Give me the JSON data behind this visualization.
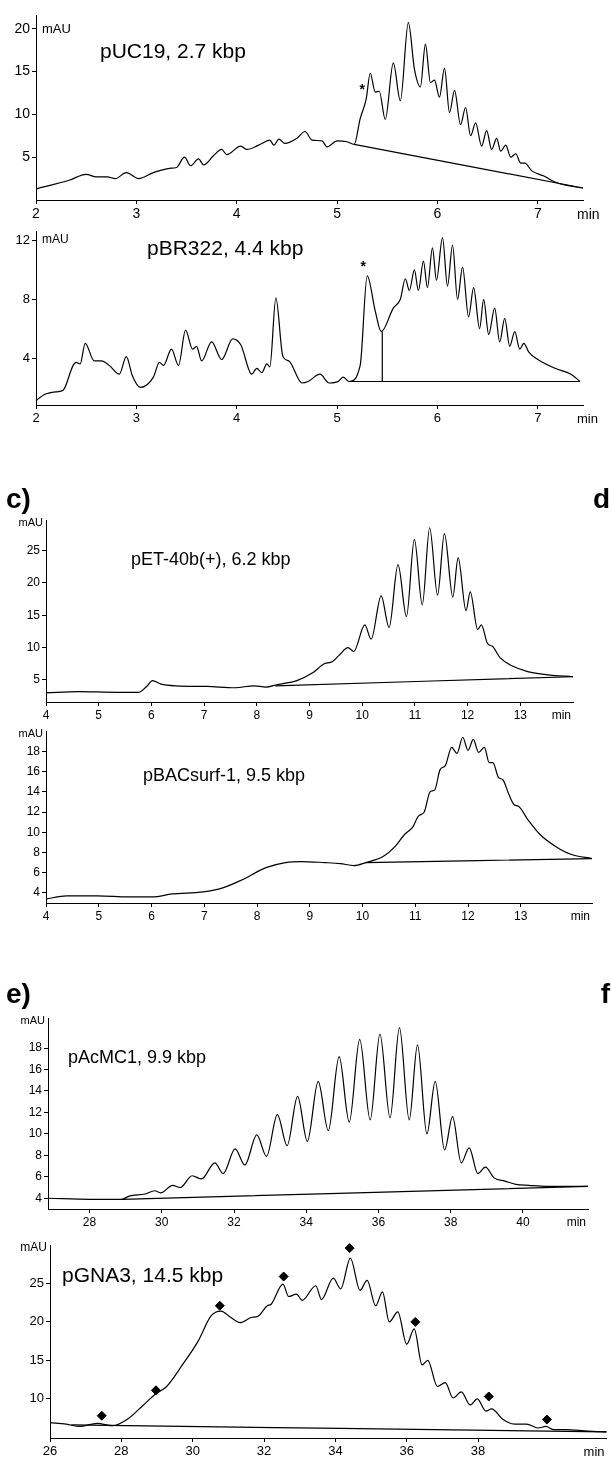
{
  "chart_data": [
    {
      "type": "line",
      "title": "pUC19, 2.7 kbp",
      "xlabel": "min",
      "ylabel": "mAU",
      "xlim": [
        2,
        7.45
      ],
      "ylim": [
        0,
        21.6
      ],
      "xticks": [
        2,
        3,
        4,
        5,
        6,
        7
      ],
      "yticks": [
        5,
        10,
        15,
        20
      ],
      "annotations": [
        {
          "text": "*",
          "x": 5.29,
          "y": 11.8
        }
      ],
      "series": [
        {
          "color": "#000000",
          "x": [
            2.0,
            2.33,
            2.5,
            2.6,
            2.71,
            2.79,
            2.9,
            3.02,
            3.17,
            3.33,
            3.4,
            3.48,
            3.54,
            3.62,
            3.67,
            3.77,
            3.85,
            3.9,
            4.04,
            4.1,
            4.25,
            4.33,
            4.37,
            4.42,
            4.48,
            4.6,
            4.68,
            4.75,
            4.85,
            4.9,
            5.0,
            5.1,
            5.17,
            5.23,
            5.29,
            5.33,
            5.38,
            5.42,
            5.48,
            5.56,
            5.63,
            5.71,
            5.77,
            5.83,
            5.88,
            5.93,
            5.97,
            6.02,
            6.07,
            6.12,
            6.17,
            6.23,
            6.28,
            6.33,
            6.38,
            6.44,
            6.49,
            6.54,
            6.59,
            6.63,
            6.68,
            6.73,
            6.78,
            6.83,
            6.87,
            6.94,
            7.06,
            7.17,
            7.29,
            7.45
          ],
          "values": [
            1.3,
            2.3,
            3.0,
            2.7,
            2.7,
            2.5,
            3.2,
            2.5,
            3.2,
            3.7,
            3.8,
            5.0,
            4.0,
            4.8,
            4.1,
            5.2,
            5.9,
            5.3,
            6.3,
            5.9,
            6.6,
            7.0,
            6.4,
            7.1,
            6.6,
            7.2,
            8.0,
            7.0,
            6.9,
            6.2,
            6.9,
            6.8,
            6.5,
            9.5,
            11.8,
            14.8,
            12.6,
            12.7,
            9.4,
            16.0,
            11.6,
            20.7,
            15.3,
            13.2,
            18.2,
            13.7,
            14.0,
            12.0,
            15.4,
            10.2,
            12.8,
            8.8,
            10.8,
            7.5,
            9.0,
            6.3,
            8.1,
            5.9,
            7.2,
            5.7,
            6.4,
            5.0,
            5.4,
            4.3,
            4.3,
            3.4,
            2.8,
            2.1,
            1.7,
            1.4
          ]
        },
        {
          "color": "#000000",
          "x": [
            5.17,
            7.45
          ],
          "values": [
            6.5,
            1.4
          ]
        }
      ]
    },
    {
      "type": "line",
      "title": "pBR322, 4.4 kbp",
      "xlabel": "min",
      "ylabel": "mAU",
      "xlim": [
        2,
        7.45
      ],
      "ylim": [
        0.8,
        12.6
      ],
      "xticks": [
        2,
        3,
        4,
        5,
        6,
        7
      ],
      "yticks": [
        4,
        8,
        12
      ],
      "annotations": [
        {
          "text": "*",
          "x": 5.3,
          "y": 9.6
        }
      ],
      "series": [
        {
          "color": "#000000",
          "x": [
            2.0,
            2.08,
            2.21,
            2.27,
            2.37,
            2.4,
            2.44,
            2.49,
            2.58,
            2.65,
            2.73,
            2.83,
            2.9,
            2.96,
            3.04,
            3.17,
            3.23,
            3.27,
            3.35,
            3.42,
            3.49,
            3.56,
            3.6,
            3.65,
            3.75,
            3.85,
            3.96,
            4.04,
            4.15,
            4.2,
            4.25,
            4.3,
            4.33,
            4.39,
            4.46,
            4.52,
            4.65,
            4.71,
            4.83,
            4.92,
            5.01,
            5.06,
            5.12,
            5.23,
            5.3,
            5.38,
            5.44,
            5.56,
            5.63,
            5.68,
            5.72,
            5.77,
            5.81,
            5.86,
            5.9,
            5.95,
            5.99,
            6.05,
            6.1,
            6.15,
            6.2,
            6.25,
            6.31,
            6.36,
            6.42,
            6.46,
            6.51,
            6.57,
            6.62,
            6.67,
            6.72,
            6.77,
            6.82,
            6.86,
            6.91,
            7.0,
            7.17,
            7.33,
            7.42
          ],
          "values": [
            1.1,
            1.5,
            1.7,
            1.8,
            3.5,
            3.7,
            3.6,
            5.0,
            3.8,
            3.8,
            3.5,
            2.9,
            4.1,
            2.8,
            2.0,
            2.7,
            3.7,
            3.5,
            4.6,
            3.5,
            5.9,
            4.6,
            4.8,
            3.8,
            5.1,
            3.9,
            5.3,
            4.9,
            2.9,
            3.3,
            3.0,
            3.6,
            3.4,
            8.1,
            4.1,
            3.8,
            2.3,
            2.4,
            2.9,
            2.3,
            2.4,
            2.7,
            2.4,
            3.5,
            9.6,
            7.2,
            5.8,
            7.4,
            8.0,
            9.4,
            8.6,
            10.0,
            8.6,
            10.6,
            8.8,
            11.5,
            9.3,
            12.2,
            8.9,
            11.7,
            8.0,
            10.2,
            6.8,
            8.8,
            6.0,
            8.0,
            5.6,
            7.4,
            5.1,
            6.7,
            4.8,
            5.8,
            4.6,
            5.0,
            4.4,
            3.9,
            3.3,
            2.9,
            2.4
          ]
        },
        {
          "color": "#000000",
          "x": [
            5.12,
            7.42
          ],
          "values": [
            2.4,
            2.4
          ]
        },
        {
          "color": "#000000",
          "x": [
            5.45,
            5.45
          ],
          "values": [
            2.4,
            5.8
          ]
        }
      ]
    },
    {
      "type": "line",
      "title": "pET-40b(+), 6.2 kbp",
      "xlabel": "min",
      "ylabel": "mAU",
      "xlim": [
        4,
        14
      ],
      "ylim": [
        1.6,
        29.7
      ],
      "xticks": [
        4,
        5,
        6,
        7,
        8,
        9,
        10,
        11,
        12,
        13
      ],
      "yticks": [
        5,
        10,
        15,
        20,
        25
      ],
      "annotations": [
        "c)",
        "d"
      ],
      "series": [
        {
          "color": "#000000",
          "x": [
            4.0,
            4.61,
            5.35,
            5.76,
            5.91,
            6.02,
            6.17,
            6.46,
            7.06,
            7.58,
            7.95,
            8.17,
            8.39,
            8.76,
            9.06,
            9.28,
            9.43,
            9.56,
            9.73,
            9.84,
            10.05,
            10.17,
            10.36,
            10.51,
            10.68,
            10.84,
            10.99,
            11.14,
            11.28,
            11.43,
            11.56,
            11.72,
            11.82,
            11.97,
            12.05,
            12.19,
            12.26,
            12.38,
            12.47,
            12.62,
            12.84,
            13.14,
            13.51,
            14.0
          ],
          "values": [
            3.0,
            3.2,
            3.1,
            3.1,
            4.0,
            4.9,
            4.4,
            4.1,
            4.0,
            3.8,
            4.1,
            3.9,
            4.3,
            4.9,
            6.1,
            7.5,
            7.8,
            8.8,
            10.0,
            9.4,
            13.5,
            11.3,
            18.0,
            13.1,
            22.8,
            14.8,
            26.7,
            16.6,
            28.5,
            18.1,
            27.6,
            17.8,
            23.9,
            15.7,
            18.6,
            12.8,
            13.5,
            10.6,
            10.2,
            8.4,
            7.2,
            6.3,
            5.8,
            5.5
          ]
        },
        {
          "color": "#000000",
          "x": [
            8.35,
            14.0
          ],
          "values": [
            4.1,
            5.5
          ]
        }
      ]
    },
    {
      "type": "line",
      "title": "pBACsurf-1, 9.5 kbp",
      "xlabel": "min",
      "ylabel": "mAU",
      "xlim": [
        4,
        14.35
      ],
      "ylim": [
        3,
        20
      ],
      "xticks": [
        4,
        5,
        6,
        7,
        8,
        9,
        10,
        11,
        12,
        13
      ],
      "yticks": [
        4,
        6,
        8,
        10,
        12,
        14,
        16,
        18
      ],
      "series": [
        {
          "color": "#000000",
          "x": [
            4.0,
            4.39,
            4.98,
            5.57,
            6.02,
            6.39,
            6.98,
            7.35,
            7.72,
            8.17,
            8.54,
            8.84,
            9.28,
            9.58,
            9.84,
            10.06,
            10.39,
            10.62,
            10.8,
            10.95,
            11.06,
            11.17,
            11.28,
            11.37,
            11.47,
            11.57,
            11.69,
            11.79,
            11.9,
            12.0,
            12.1,
            12.2,
            12.31,
            12.4,
            12.47,
            12.58,
            12.66,
            12.77,
            12.88,
            12.95,
            13.14,
            13.36,
            13.66,
            13.96,
            14.35
          ],
          "values": [
            3.4,
            3.7,
            3.7,
            3.6,
            3.6,
            3.9,
            4.1,
            4.5,
            5.3,
            6.5,
            7.0,
            7.1,
            7.0,
            6.9,
            6.7,
            7.0,
            7.6,
            8.6,
            9.8,
            10.5,
            11.6,
            12.0,
            14.0,
            14.2,
            16.2,
            16.6,
            18.4,
            17.8,
            19.4,
            18.1,
            19.2,
            17.9,
            18.4,
            16.9,
            16.9,
            15.4,
            15.2,
            13.8,
            12.7,
            12.6,
            11.2,
            9.8,
            8.6,
            7.8,
            7.4
          ]
        },
        {
          "color": "#000000",
          "x": [
            10.06,
            14.35
          ],
          "values": [
            7.0,
            7.4
          ]
        }
      ]
    },
    {
      "type": "line",
      "title": "pAcMC1, 9.9 kbp",
      "xlabel": "min",
      "ylabel": "mAU",
      "xlim": [
        26.85,
        41.8
      ],
      "ylim": [
        3,
        20.8
      ],
      "xticks": [
        28,
        30,
        32,
        34,
        36,
        38,
        40
      ],
      "yticks": [
        4,
        6,
        8,
        10,
        12,
        14,
        16,
        18
      ],
      "annotations": [
        "e)",
        "f"
      ],
      "series": [
        {
          "color": "#000000",
          "x": [
            26.86,
            28.02,
            28.89,
            29.1,
            29.54,
            29.8,
            29.97,
            30.3,
            30.51,
            30.84,
            31.1,
            31.47,
            31.7,
            32.03,
            32.3,
            32.63,
            32.9,
            33.2,
            33.47,
            33.76,
            34.03,
            34.33,
            34.61,
            34.91,
            35.19,
            35.48,
            35.77,
            36.04,
            36.32,
            36.58,
            36.85,
            37.08,
            37.34,
            37.57,
            37.83,
            38.05,
            38.29,
            38.51,
            38.75,
            38.96,
            39.2,
            39.5,
            39.8,
            40.16,
            40.7,
            41.8
          ],
          "values": [
            4.0,
            3.9,
            3.9,
            4.2,
            4.4,
            4.7,
            4.5,
            5.2,
            5.0,
            6.1,
            5.8,
            7.3,
            6.3,
            8.6,
            7.1,
            9.9,
            7.9,
            11.8,
            8.9,
            13.5,
            9.3,
            14.9,
            10.3,
            17.2,
            11.1,
            18.8,
            11.3,
            19.3,
            11.5,
            19.9,
            11.3,
            18.3,
            10.0,
            14.9,
            8.5,
            11.6,
            7.3,
            8.7,
            6.3,
            6.9,
            5.9,
            5.6,
            5.3,
            5.2,
            5.1,
            5.1
          ]
        },
        {
          "color": "#000000",
          "x": [
            28.89,
            41.8
          ],
          "values": [
            3.9,
            5.1
          ]
        }
      ]
    },
    {
      "type": "line",
      "title": "pGNA3, 14.5 kbp",
      "xlabel": "min",
      "ylabel": "mAU",
      "xlim": [
        26,
        41.6
      ],
      "ylim": [
        4.9,
        30
      ],
      "xticks": [
        26,
        28,
        30,
        32,
        34,
        36,
        38
      ],
      "yticks": [
        10,
        15,
        20,
        25
      ],
      "series": [
        {
          "color": "#000000",
          "x": [
            26.0,
            26.46,
            26.83,
            27.32,
            27.76,
            28.19,
            28.62,
            28.95,
            29.27,
            29.71,
            30.14,
            30.52,
            30.79,
            31.06,
            31.33,
            31.66,
            31.82,
            32.09,
            32.2,
            32.53,
            32.69,
            32.91,
            33.07,
            33.45,
            33.61,
            33.94,
            34.15,
            34.42,
            34.69,
            34.89,
            35.13,
            35.32,
            35.51,
            35.75,
            36.0,
            36.21,
            36.43,
            36.59,
            36.86,
            37.08,
            37.3,
            37.53,
            37.78,
            37.98,
            38.22,
            38.38,
            38.7,
            39.03,
            39.36,
            39.68,
            39.9,
            40.11,
            40.44,
            41.09,
            41.6
          ],
          "values": [
            6.9,
            6.7,
            6.4,
            6.8,
            6.5,
            7.4,
            9.2,
            10.6,
            11.6,
            14.4,
            17.4,
            20.8,
            21.4,
            20.6,
            19.9,
            20.6,
            20.7,
            22.1,
            22.3,
            24.9,
            23.3,
            23.6,
            22.8,
            24.7,
            22.9,
            25.7,
            24.3,
            28.3,
            24.1,
            25.4,
            22.1,
            23.9,
            20.0,
            21.3,
            17.1,
            19.1,
            14.4,
            15.0,
            11.6,
            12.1,
            10.1,
            10.9,
            9.2,
            10.0,
            8.4,
            8.7,
            7.3,
            6.7,
            6.7,
            6.2,
            6.4,
            6.0,
            6.0,
            5.8,
            5.7
          ]
        },
        {
          "color": "#000000",
          "x": [
            26.6,
            41.6
          ],
          "values": [
            6.6,
            5.7
          ]
        },
        {
          "type": "scatter",
          "marker": "diamond",
          "color": "#000000",
          "x": [
            27.45,
            28.97,
            30.76,
            32.55,
            34.4,
            36.24,
            38.3,
            39.93
          ],
          "values": [
            7.8,
            11.1,
            22.1,
            25.9,
            29.6,
            20.0,
            10.3,
            7.3
          ]
        }
      ]
    }
  ]
}
